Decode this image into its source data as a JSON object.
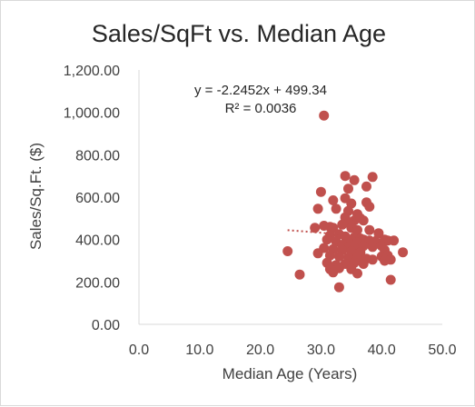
{
  "chart_data": {
    "type": "scatter",
    "title": "Sales/SqFt vs. Median Age",
    "xlabel": "Median Age (Years)",
    "ylabel": "Sales/Sq.Ft. ($)",
    "xlim": [
      0,
      50
    ],
    "ylim": [
      0,
      1200
    ],
    "x_ticks": [
      "0.0",
      "10.0",
      "20.0",
      "30.0",
      "40.0",
      "50.0"
    ],
    "y_ticks": [
      "0.00",
      "200.00",
      "400.00",
      "600.00",
      "800.00",
      "1,000.00",
      "1,200.00"
    ],
    "grid": false,
    "marker_color": "#c0504d",
    "trendline": {
      "slope": -2.2452,
      "intercept": 499.34,
      "x_range": [
        24.5,
        42.5
      ],
      "equation": "y = -2.2452x + 499.34",
      "r_squared": "R² = 0.0036"
    },
    "points": [
      [
        30.5,
        985
      ],
      [
        34.0,
        700
      ],
      [
        35.5,
        680
      ],
      [
        38.5,
        695
      ],
      [
        37.5,
        650
      ],
      [
        34.5,
        640
      ],
      [
        30.0,
        625
      ],
      [
        32.0,
        585
      ],
      [
        34.0,
        595
      ],
      [
        35.0,
        570
      ],
      [
        37.5,
        575
      ],
      [
        38.0,
        555
      ],
      [
        32.5,
        545
      ],
      [
        29.5,
        545
      ],
      [
        34.5,
        535
      ],
      [
        36.0,
        520
      ],
      [
        34.0,
        505
      ],
      [
        35.5,
        490
      ],
      [
        37.0,
        490
      ],
      [
        36.5,
        500
      ],
      [
        34.5,
        480
      ],
      [
        33.5,
        470
      ],
      [
        30.5,
        465
      ],
      [
        31.5,
        460
      ],
      [
        32.0,
        455
      ],
      [
        29.0,
        455
      ],
      [
        35.0,
        455
      ],
      [
        36.0,
        445
      ],
      [
        38.0,
        445
      ],
      [
        39.5,
        430
      ],
      [
        31.5,
        420
      ],
      [
        33.0,
        425
      ],
      [
        34.0,
        415
      ],
      [
        35.5,
        410
      ],
      [
        36.5,
        405
      ],
      [
        37.0,
        400
      ],
      [
        38.0,
        395
      ],
      [
        31.0,
        400
      ],
      [
        32.5,
        390
      ],
      [
        34.5,
        390
      ],
      [
        36.0,
        385
      ],
      [
        40.5,
        400
      ],
      [
        41.0,
        395
      ],
      [
        42.0,
        395
      ],
      [
        39.0,
        390
      ],
      [
        33.5,
        375
      ],
      [
        34.5,
        365
      ],
      [
        35.5,
        360
      ],
      [
        37.0,
        370
      ],
      [
        38.5,
        365
      ],
      [
        40.0,
        370
      ],
      [
        30.5,
        360
      ],
      [
        32.0,
        355
      ],
      [
        33.5,
        350
      ],
      [
        35.0,
        345
      ],
      [
        36.5,
        340
      ],
      [
        40.5,
        350
      ],
      [
        43.5,
        340
      ],
      [
        24.5,
        345
      ],
      [
        29.5,
        335
      ],
      [
        31.5,
        325
      ],
      [
        33.0,
        320
      ],
      [
        34.5,
        315
      ],
      [
        36.0,
        315
      ],
      [
        37.5,
        310
      ],
      [
        38.5,
        305
      ],
      [
        40.0,
        320
      ],
      [
        41.0,
        325
      ],
      [
        40.5,
        300
      ],
      [
        41.5,
        305
      ],
      [
        31.0,
        290
      ],
      [
        32.5,
        280
      ],
      [
        34.0,
        285
      ],
      [
        35.5,
        290
      ],
      [
        37.0,
        285
      ],
      [
        33.0,
        265
      ],
      [
        35.0,
        260
      ],
      [
        31.5,
        260
      ],
      [
        32.0,
        245
      ],
      [
        36.0,
        240
      ],
      [
        26.5,
        235
      ],
      [
        41.5,
        210
      ],
      [
        33.0,
        175
      ]
    ]
  }
}
